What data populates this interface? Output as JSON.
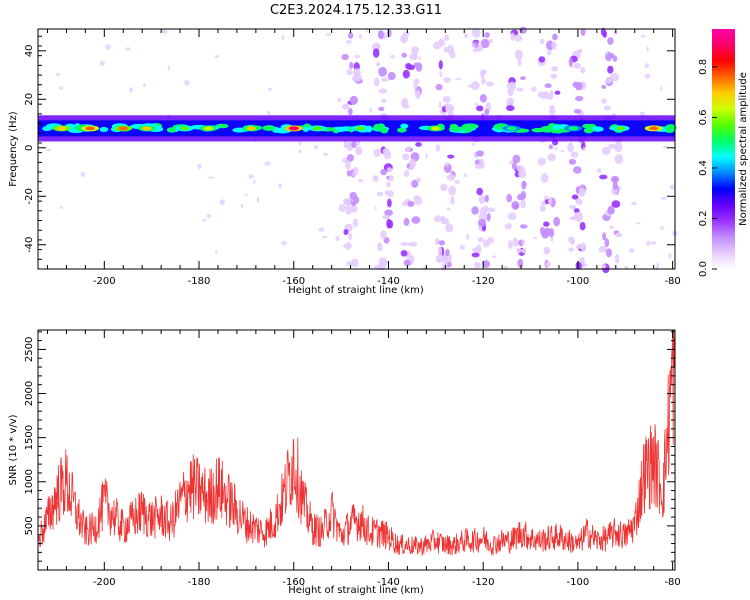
{
  "title": "C2E3.2024.175.12.33.G11",
  "colors": {
    "frame": "#000000",
    "snr_line": "#ee3333",
    "colormap": [
      "#ffffff",
      "#e6ccff",
      "#c48cff",
      "#9933ff",
      "#6600ff",
      "#0000ff",
      "#0088ff",
      "#00ffff",
      "#00ff66",
      "#55ff00",
      "#ccff00",
      "#ffcc00",
      "#ff6600",
      "#ff0000",
      "#ff0066",
      "#ff00aa"
    ]
  },
  "chart_data": [
    {
      "type": "heatmap",
      "xlabel": "Height of straight line (km)",
      "ylabel": "Frequency (Hz)",
      "xlim": [
        -214,
        -79.5
      ],
      "ylim": [
        -50,
        49
      ],
      "xticks": [
        -200,
        -180,
        -160,
        -140,
        -120,
        -100,
        -80
      ],
      "yticks": [
        -40,
        -20,
        0,
        20,
        40
      ],
      "colorbar": {
        "label": "Normalized spectral amplitude",
        "range": [
          0,
          0.95
        ],
        "ticks": [
          0.0,
          0.2,
          0.4,
          0.6,
          0.8
        ]
      },
      "dominant_band": {
        "frequency_hz": 8,
        "width_hz": 6,
        "peak_amplitude": 0.9
      },
      "hot_spots": [
        {
          "x": -209,
          "amp": 0.72
        },
        {
          "x": -203,
          "amp": 0.8
        },
        {
          "x": -196,
          "amp": 0.78
        },
        {
          "x": -191,
          "amp": 0.7
        },
        {
          "x": -183,
          "amp": 0.6
        },
        {
          "x": -178,
          "amp": 0.65
        },
        {
          "x": -169,
          "amp": 0.7
        },
        {
          "x": -160,
          "amp": 0.9
        },
        {
          "x": -155,
          "amp": 0.6
        },
        {
          "x": -146,
          "amp": 0.6
        },
        {
          "x": -130,
          "amp": 0.65
        },
        {
          "x": -114,
          "amp": 0.55
        },
        {
          "x": -101,
          "amp": 0.55
        },
        {
          "x": -91,
          "amp": 0.6
        },
        {
          "x": -84,
          "amp": 0.8
        }
      ],
      "noisy_columns_km": [
        -148,
        -141,
        -135,
        -128,
        -120,
        -113,
        -106,
        -100,
        -93
      ]
    },
    {
      "type": "line",
      "xlabel": "Height of straight line (km)",
      "ylabel": "SNR (10 * v/v)",
      "xlim": [
        -214,
        -79.5
      ],
      "ylim": [
        0,
        2720
      ],
      "xticks": [
        -200,
        -180,
        -160,
        -140,
        -120,
        -100,
        -80
      ],
      "yticks": [
        500,
        1000,
        1500,
        2000,
        2500
      ],
      "series": [
        {
          "x": [
            -214,
            -212,
            -210,
            -208,
            -206,
            -204,
            -202,
            -200,
            -198,
            -196,
            -194,
            -192,
            -190,
            -188,
            -186,
            -184,
            -182,
            -180,
            -178,
            -176,
            -174,
            -172,
            -170,
            -168,
            -166,
            -164,
            -162,
            -160,
            -158,
            -156,
            -154,
            -152,
            -150,
            -148,
            -146,
            -144,
            -142,
            -140,
            -138,
            -136,
            -134,
            -132,
            -130,
            -128,
            -126,
            -124,
            -122,
            -120,
            -118,
            -116,
            -114,
            -112,
            -110,
            -108,
            -106,
            -104,
            -102,
            -100,
            -98,
            -96,
            -94,
            -92,
            -90,
            -88,
            -86,
            -84,
            -82,
            -80
          ],
          "y": [
            350,
            600,
            900,
            1050,
            700,
            450,
            500,
            800,
            650,
            500,
            600,
            700,
            600,
            650,
            550,
            800,
            1000,
            950,
            850,
            1000,
            850,
            700,
            550,
            500,
            450,
            600,
            900,
            1350,
            800,
            500,
            450,
            700,
            400,
            550,
            600,
            450,
            450,
            400,
            300,
            300,
            280,
            300,
            350,
            300,
            300,
            350,
            350,
            380,
            300,
            350,
            350,
            450,
            380,
            350,
            380,
            400,
            350,
            300,
            450,
            350,
            380,
            450,
            400,
            550,
            1150,
            1300,
            950,
            2400
          ]
        }
      ]
    }
  ]
}
